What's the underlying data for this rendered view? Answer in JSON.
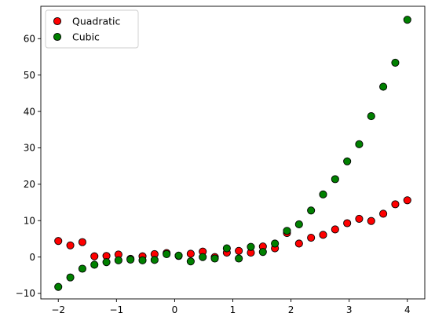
{
  "chart_data": {
    "type": "scatter",
    "xlim": [
      -2.3,
      4.3
    ],
    "ylim": [
      -11.5,
      68.9
    ],
    "xticks": [
      -2,
      -1,
      0,
      1,
      2,
      3,
      4
    ],
    "xtick_labels": [
      "−2",
      "−1",
      "0",
      "1",
      "2",
      "3",
      "4"
    ],
    "yticks": [
      -10,
      0,
      10,
      20,
      30,
      40,
      50,
      60
    ],
    "ytick_labels": [
      "−10",
      "0",
      "10",
      "20",
      "30",
      "40",
      "50",
      "60"
    ],
    "grid": false,
    "legend_position": "top-left",
    "series": [
      {
        "name": "Quadratic",
        "color": "#ff0000",
        "x": [
          -2.0,
          -1.793,
          -1.586,
          -1.379,
          -1.172,
          -0.966,
          -0.759,
          -0.552,
          -0.345,
          -0.138,
          0.069,
          0.276,
          0.483,
          0.69,
          0.897,
          1.103,
          1.31,
          1.517,
          1.724,
          1.931,
          2.138,
          2.345,
          2.552,
          2.759,
          2.966,
          3.172,
          3.379,
          3.586,
          3.793,
          4.0
        ],
        "y": [
          4.4,
          3.2,
          4.1,
          0.2,
          0.3,
          0.7,
          -0.5,
          0.2,
          0.8,
          1.1,
          0.3,
          0.9,
          1.5,
          0.0,
          1.2,
          1.7,
          1.2,
          2.9,
          2.4,
          6.6,
          3.7,
          5.3,
          6.1,
          7.6,
          9.3,
          10.5,
          9.9,
          11.9,
          14.5,
          15.6
        ]
      },
      {
        "name": "Cubic",
        "color": "#008000",
        "x": [
          -2.0,
          -1.793,
          -1.586,
          -1.379,
          -1.172,
          -0.966,
          -0.759,
          -0.552,
          -0.345,
          -0.138,
          0.069,
          0.276,
          0.483,
          0.69,
          0.897,
          1.103,
          1.31,
          1.517,
          1.724,
          1.931,
          2.138,
          2.345,
          2.552,
          2.759,
          2.966,
          3.172,
          3.379,
          3.586,
          3.793,
          4.0
        ],
        "y": [
          -8.2,
          -5.6,
          -3.2,
          -2.1,
          -1.4,
          -0.9,
          -0.7,
          -0.9,
          -0.8,
          0.8,
          0.4,
          -1.2,
          0.0,
          -0.4,
          2.4,
          -0.4,
          2.8,
          1.4,
          3.7,
          7.2,
          9.0,
          12.8,
          17.2,
          21.4,
          26.3,
          31.0,
          38.7,
          46.8,
          53.4,
          65.2
        ]
      }
    ]
  }
}
